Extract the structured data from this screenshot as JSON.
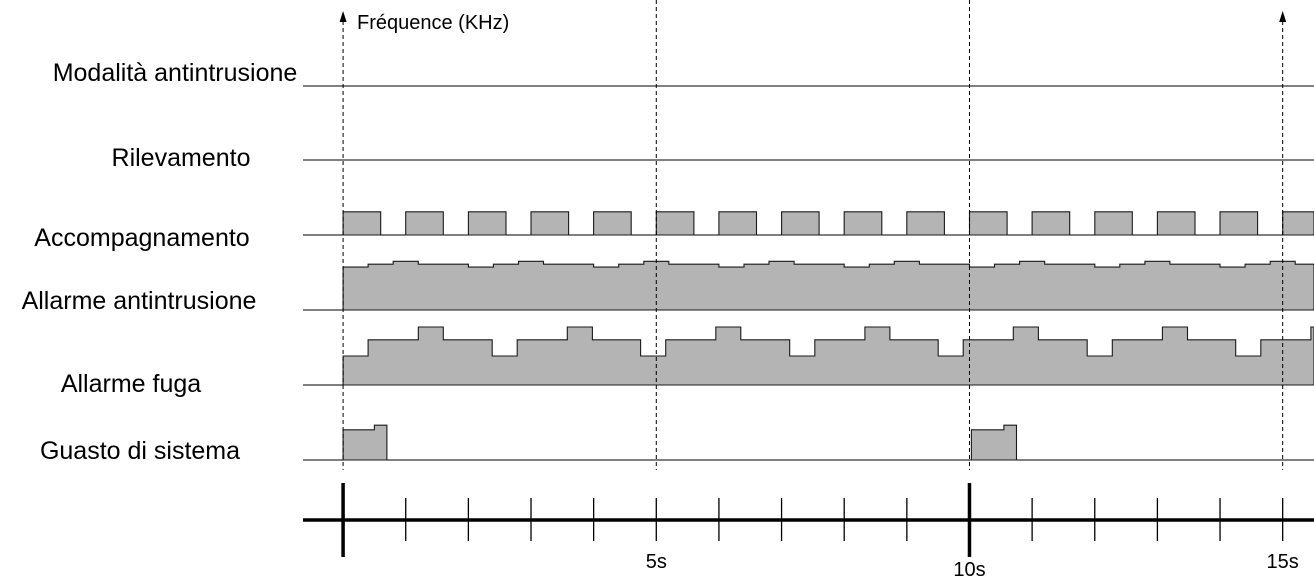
{
  "y_axis_label": "Fréquence (KHz)",
  "colors": {
    "waveform_fill": "#b4b4b4",
    "waveform_outline": "#1a1a1a",
    "line": "#000000"
  },
  "time_axis": {
    "range": [
      -0.64,
      15.5
    ],
    "ticks": [
      0,
      1,
      2,
      3,
      4,
      5,
      6,
      7,
      8,
      9,
      10,
      11,
      12,
      13,
      14,
      15
    ],
    "major_ticks": [
      0,
      10
    ],
    "labels": [
      {
        "t": 5,
        "text": "5s"
      },
      {
        "t": 10,
        "text": "10s"
      },
      {
        "t": 15,
        "text": "15s"
      }
    ]
  },
  "markers": [
    {
      "t": 0,
      "arrow": true
    },
    {
      "t": 5,
      "arrow": false
    },
    {
      "t": 10,
      "arrow": false
    },
    {
      "t": 15,
      "arrow": true
    }
  ],
  "signals": [
    {
      "label": "Modalità antintrusione",
      "pulses": []
    },
    {
      "label": "Rilevamento",
      "pulses": []
    },
    {
      "label": "Accompagnamento",
      "pulses": [
        [
          [
            0,
            0.4
          ],
          [
            0.6,
            0
          ]
        ],
        [
          [
            1,
            0.4
          ],
          [
            1.6,
            0
          ]
        ],
        [
          [
            2,
            0.4
          ],
          [
            2.6,
            0
          ]
        ],
        [
          [
            3,
            0.4
          ],
          [
            3.6,
            0
          ]
        ],
        [
          [
            4,
            0.4
          ],
          [
            4.6,
            0
          ]
        ],
        [
          [
            5,
            0.4
          ],
          [
            5.6,
            0
          ]
        ],
        [
          [
            6,
            0.4
          ],
          [
            6.6,
            0
          ]
        ],
        [
          [
            7,
            0.4
          ],
          [
            7.6,
            0
          ]
        ],
        [
          [
            8,
            0.4
          ],
          [
            8.6,
            0
          ]
        ],
        [
          [
            9,
            0.4
          ],
          [
            9.6,
            0
          ]
        ],
        [
          [
            10,
            0.4
          ],
          [
            10.6,
            0
          ]
        ],
        [
          [
            11,
            0.4
          ],
          [
            11.6,
            0
          ]
        ],
        [
          [
            12,
            0.4
          ],
          [
            12.6,
            0
          ]
        ],
        [
          [
            13,
            0.4
          ],
          [
            13.6,
            0
          ]
        ],
        [
          [
            14,
            0.4
          ],
          [
            14.6,
            0
          ]
        ],
        [
          [
            15,
            0.4
          ]
        ]
      ]
    },
    {
      "label": "Allarme antintrusione",
      "pulses": [
        [
          [
            0,
            0.74
          ],
          [
            0.4,
            0.79
          ],
          [
            0.8,
            0.84
          ],
          [
            1.2,
            0.79
          ],
          [
            2,
            0.74
          ],
          [
            2.4,
            0.79
          ],
          [
            2.8,
            0.84
          ],
          [
            3.2,
            0.79
          ],
          [
            4,
            0.74
          ],
          [
            4.4,
            0.79
          ],
          [
            4.8,
            0.84
          ],
          [
            5.2,
            0.79
          ],
          [
            6,
            0.74
          ],
          [
            6.4,
            0.79
          ],
          [
            6.8,
            0.84
          ],
          [
            7.2,
            0.79
          ],
          [
            8,
            0.74
          ],
          [
            8.4,
            0.79
          ],
          [
            8.8,
            0.84
          ],
          [
            9.2,
            0.79
          ],
          [
            10,
            0.74
          ],
          [
            10.4,
            0.79
          ],
          [
            10.8,
            0.84
          ],
          [
            11.2,
            0.79
          ],
          [
            12,
            0.74
          ],
          [
            12.4,
            0.79
          ],
          [
            12.8,
            0.84
          ],
          [
            13.2,
            0.79
          ],
          [
            14,
            0.74
          ],
          [
            14.4,
            0.79
          ],
          [
            14.8,
            0.84
          ],
          [
            15.2,
            0.79
          ]
        ]
      ]
    },
    {
      "label": "Allarme fuga",
      "pulses": [
        [
          [
            0,
            0.5
          ],
          [
            0.4,
            0.78
          ],
          [
            1.2,
            1
          ],
          [
            1.6,
            0.78
          ],
          [
            2.38,
            0.5
          ],
          [
            2.78,
            0.78
          ],
          [
            3.58,
            1
          ],
          [
            3.98,
            0.78
          ],
          [
            4.75,
            0.5
          ],
          [
            5.15,
            0.78
          ],
          [
            5.95,
            1
          ],
          [
            6.35,
            0.78
          ],
          [
            7.13,
            0.5
          ],
          [
            7.53,
            0.78
          ],
          [
            8.33,
            1
          ],
          [
            8.73,
            0.78
          ],
          [
            9.5,
            0.5
          ],
          [
            9.9,
            0.78
          ],
          [
            10.7,
            1
          ],
          [
            11.1,
            0.78
          ],
          [
            11.88,
            0.5
          ],
          [
            12.28,
            0.78
          ],
          [
            13.08,
            1
          ],
          [
            13.48,
            0.78
          ],
          [
            14.25,
            0.5
          ],
          [
            14.65,
            0.78
          ],
          [
            15.45,
            1
          ]
        ]
      ]
    },
    {
      "label": "Guasto di sistema",
      "pulses": [
        [
          [
            0,
            0.52
          ],
          [
            0.5,
            0.6
          ],
          [
            0.7,
            0
          ]
        ],
        [
          [
            10.03,
            0.52
          ],
          [
            10.55,
            0.6
          ],
          [
            10.75,
            0
          ]
        ]
      ]
    }
  ]
}
